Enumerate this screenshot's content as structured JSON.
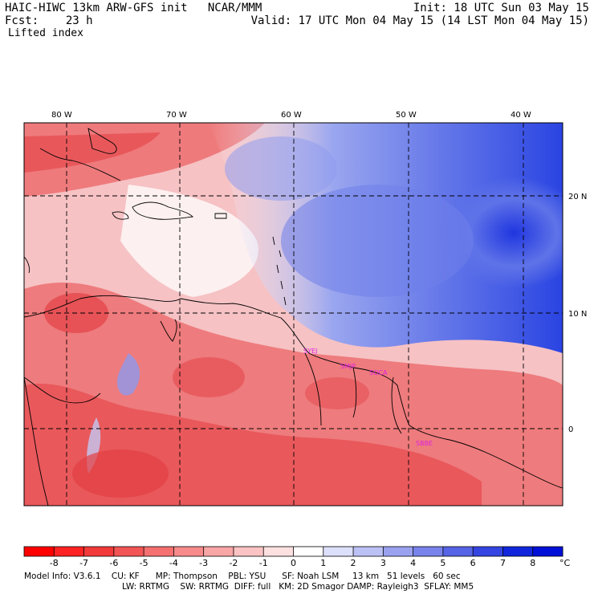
{
  "header": {
    "title_left": "HAIC-HIWC 13km ARW-GFS init   NCAR/MMM",
    "fcst": "Fcst:    23 h",
    "field": "Lifted index",
    "init": "Init: 18 UTC Sun 03 May 15",
    "valid": "Valid: 17 UTC Mon 04 May 15 (14 LST Mon 04 May 15)"
  },
  "map": {
    "lon_labels": [
      "80 W",
      "70 W",
      "60 W",
      "50 W",
      "40 W"
    ],
    "lat_labels": [
      "20 N",
      "10 N",
      "0"
    ],
    "stations": [
      "SYEJ",
      "SMJP",
      "SOCA",
      "SBBE"
    ],
    "colors": {
      "warm": "#e8484b",
      "neutral": "#ffffff",
      "cold": "#3344e0",
      "station": "#e020e0"
    }
  },
  "colorbar": {
    "ticks": [
      "-8",
      "-7",
      "-6",
      "-5",
      "-4",
      "-3",
      "-2",
      "-1",
      "0",
      "1",
      "2",
      "3",
      "4",
      "5",
      "6",
      "7",
      "8"
    ],
    "unit": "°C",
    "colors": [
      "#ff0000",
      "#ff2222",
      "#f23a3a",
      "#f25555",
      "#f57070",
      "#f78b8b",
      "#f9a6a6",
      "#fbc3c3",
      "#fde0e0",
      "#ffffff",
      "#dde0fa",
      "#bcc1f5",
      "#9aa2f0",
      "#7883eb",
      "#5664e6",
      "#3445e1",
      "#1126dc",
      "#0010d8"
    ]
  },
  "footer": {
    "line1": "Model Info: V3.6.1    CU: KF      MP: Thompson    PBL: YSU      SF: Noah LSM     13 km   51 levels   60 sec",
    "line2": "LW: RRTMG    SW: RRTMG  DIFF: full   KM: 2D Smagor DAMP: Rayleigh3  SFLAY: MM5"
  }
}
